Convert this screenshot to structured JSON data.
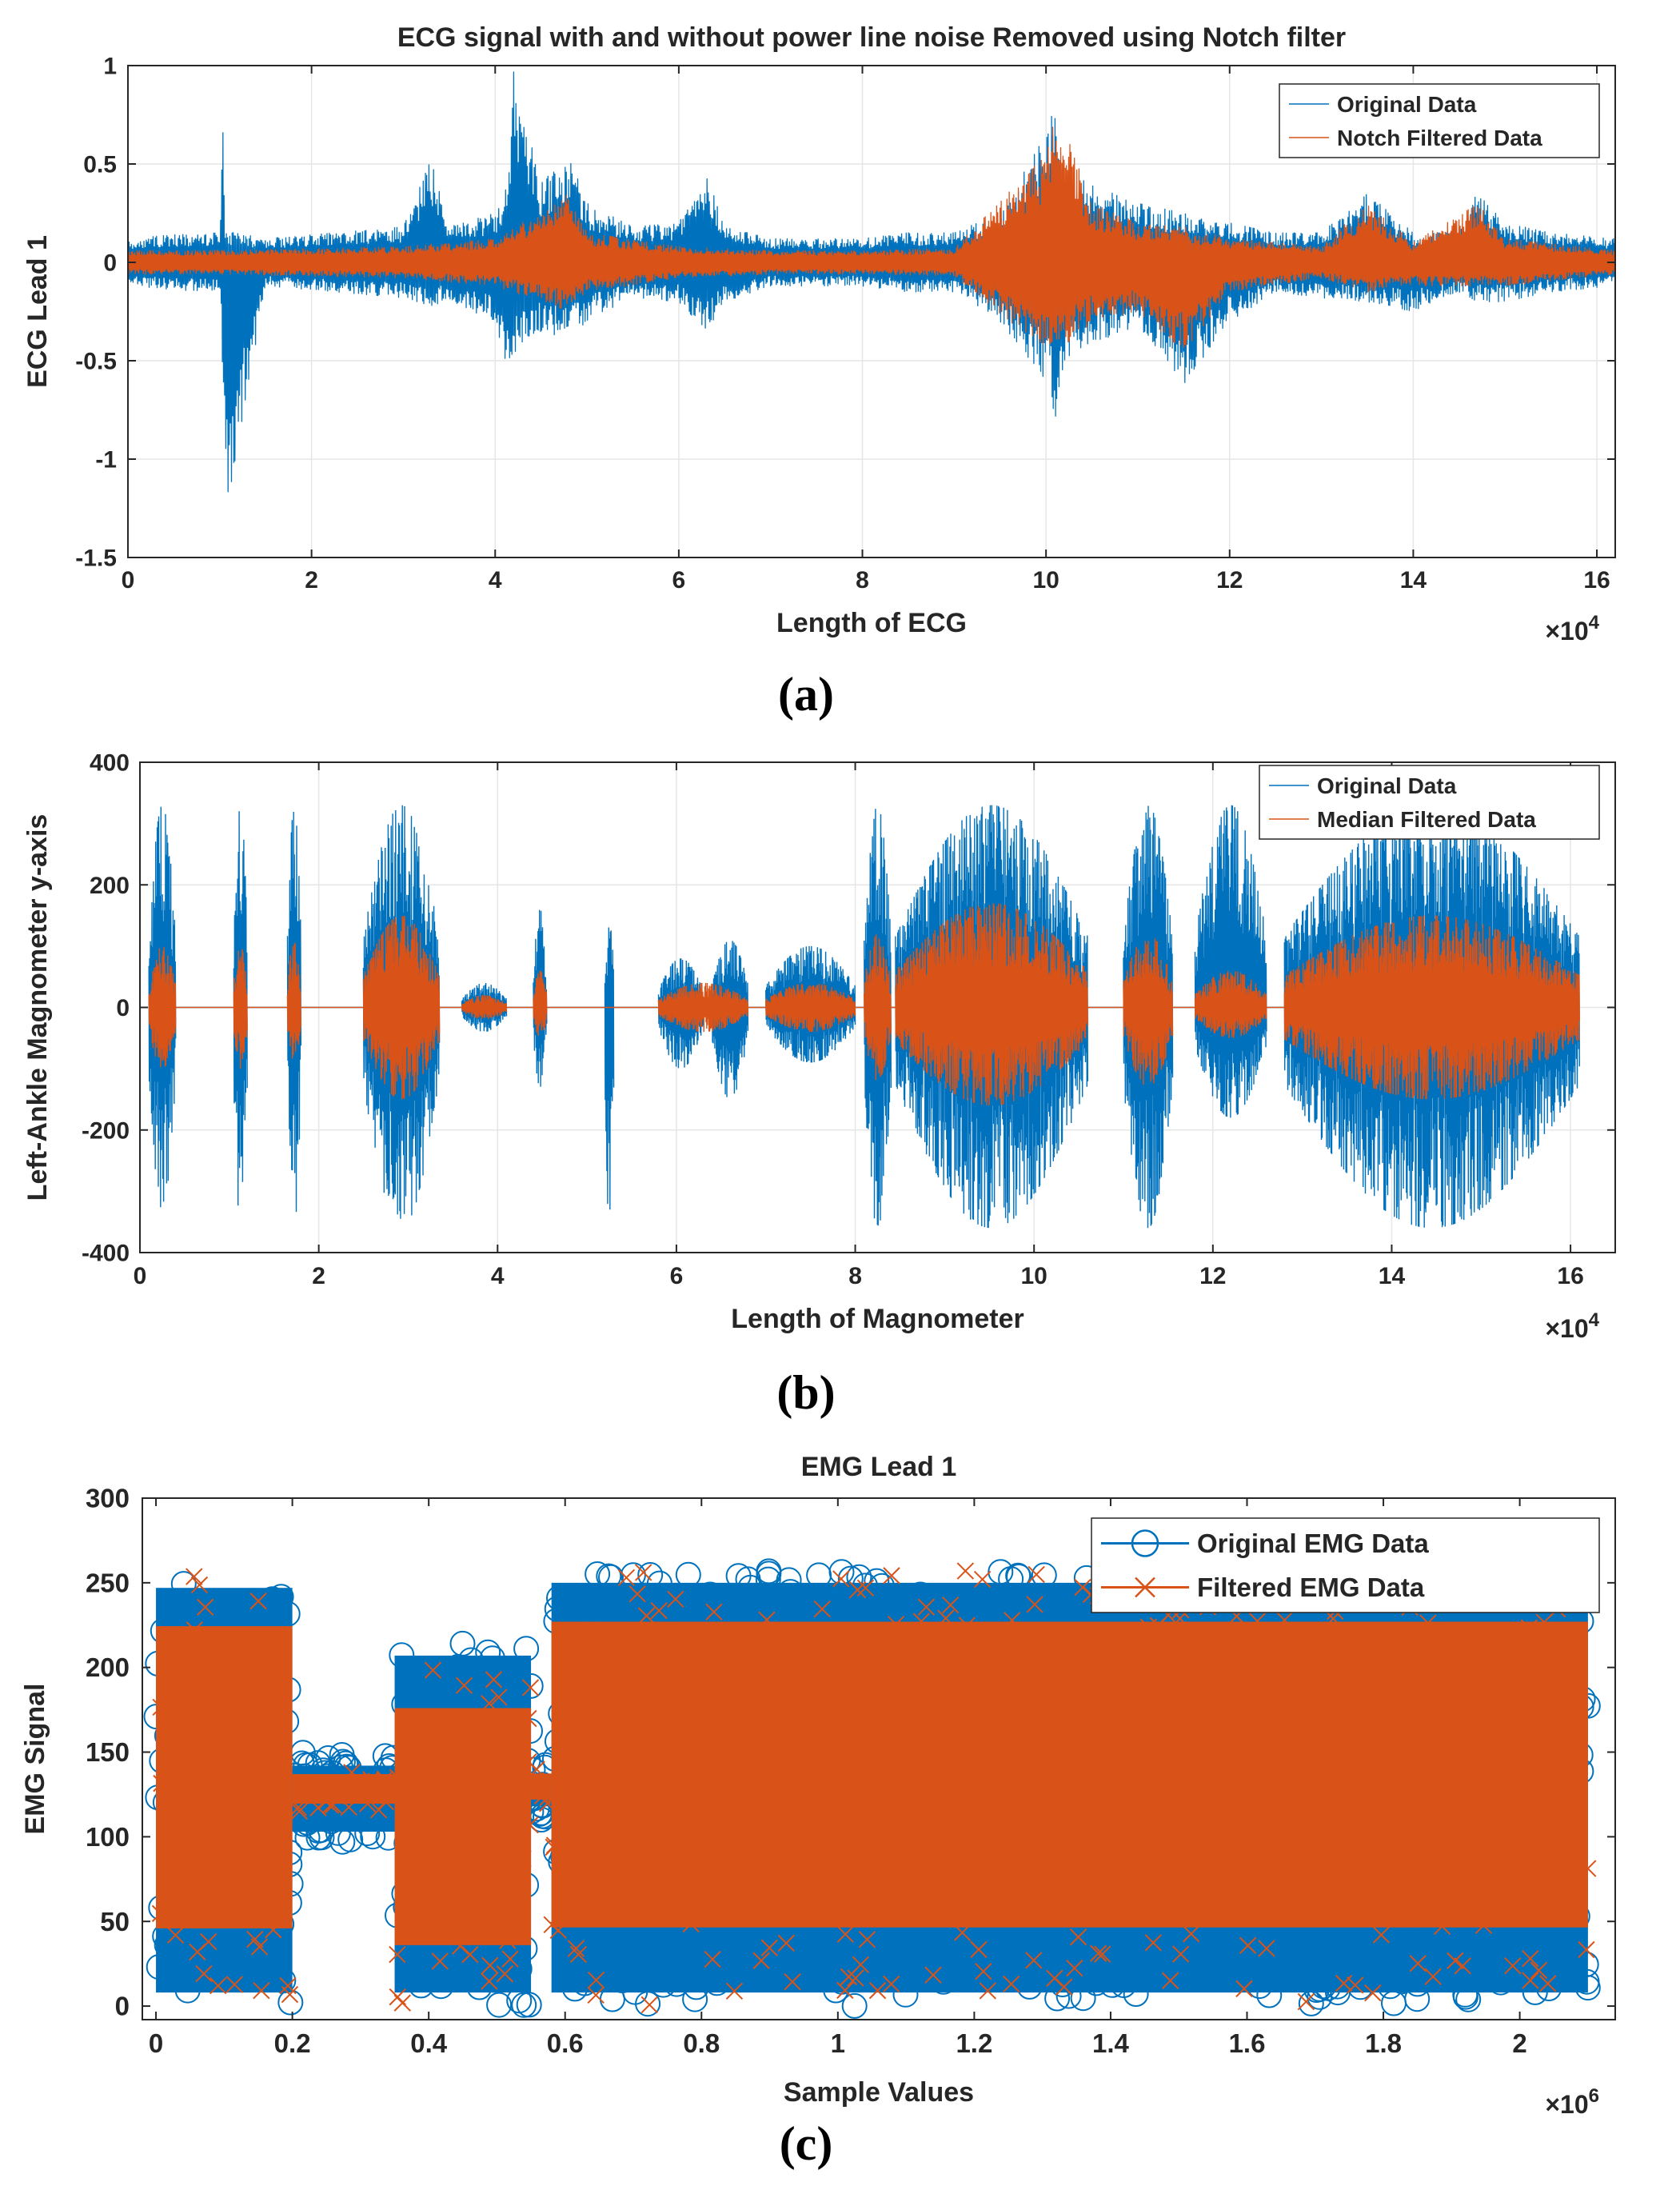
{
  "figure": {
    "captions": [
      "(a)",
      "(b)",
      "(c)"
    ]
  },
  "chart_data": [
    {
      "id": "a",
      "type": "line",
      "title": "ECG signal with and without power line noise Removed using Notch filter",
      "xlabel": "Length of ECG",
      "ylabel": "ECG Lead 1",
      "xlim": [
        0,
        16.2
      ],
      "ylim": [
        -1.5,
        1
      ],
      "x_exponent": "4",
      "x_ticks": [
        0,
        2,
        4,
        6,
        8,
        10,
        12,
        14,
        16
      ],
      "y_ticks": [
        -1.5,
        -1,
        -0.5,
        0,
        0.5,
        1
      ],
      "grid": true,
      "legend_position": "top-right",
      "colors": {
        "original": "#0072BD",
        "filtered": "#D95319"
      },
      "series": [
        {
          "name": "Original Data",
          "x": [
            0,
            0.5,
            1.0,
            1.03,
            1.06,
            1.5,
            2.0,
            2.5,
            3.0,
            3.3,
            3.5,
            4.0,
            4.15,
            4.2,
            4.5,
            4.8,
            5.0,
            5.5,
            6.0,
            6.3,
            6.5,
            7.0,
            7.5,
            8.0,
            8.5,
            9.0,
            9.5,
            10.0,
            10.1,
            10.2,
            10.5,
            11.0,
            11.5,
            12.0,
            12.5,
            13.0,
            13.5,
            14.0,
            14.5,
            14.7,
            15.0,
            15.5,
            16.2
          ],
          "upper": [
            0.12,
            0.14,
            0.15,
            0.78,
            0.16,
            0.12,
            0.14,
            0.16,
            0.18,
            0.52,
            0.18,
            0.25,
            0.45,
            1.0,
            0.4,
            0.55,
            0.3,
            0.18,
            0.2,
            0.45,
            0.18,
            0.12,
            0.12,
            0.12,
            0.15,
            0.15,
            0.25,
            0.65,
            0.85,
            0.45,
            0.4,
            0.3,
            0.25,
            0.2,
            0.15,
            0.15,
            0.35,
            0.15,
            0.15,
            0.38,
            0.2,
            0.15,
            0.12
          ],
          "lower": [
            -0.12,
            -0.14,
            -0.15,
            -0.56,
            -1.35,
            -0.12,
            -0.14,
            -0.16,
            -0.18,
            -0.22,
            -0.2,
            -0.3,
            -0.57,
            -0.5,
            -0.35,
            -0.4,
            -0.3,
            -0.18,
            -0.2,
            -0.35,
            -0.2,
            -0.12,
            -0.12,
            -0.12,
            -0.15,
            -0.15,
            -0.3,
            -0.6,
            -0.83,
            -0.5,
            -0.4,
            -0.35,
            -0.62,
            -0.3,
            -0.15,
            -0.18,
            -0.2,
            -0.25,
            -0.15,
            -0.2,
            -0.2,
            -0.15,
            -0.12
          ]
        },
        {
          "name": "Notch Filtered Data",
          "x": [
            0,
            1.0,
            2.0,
            3.0,
            4.0,
            4.8,
            5.0,
            6.0,
            7.0,
            8.0,
            9.0,
            10.0,
            10.1,
            10.5,
            11.0,
            11.5,
            12.0,
            13.0,
            13.5,
            14.0,
            14.7,
            15.0,
            16.2
          ],
          "upper": [
            0.06,
            0.06,
            0.07,
            0.08,
            0.12,
            0.35,
            0.15,
            0.08,
            0.06,
            0.06,
            0.07,
            0.55,
            0.8,
            0.3,
            0.2,
            0.18,
            0.12,
            0.08,
            0.3,
            0.1,
            0.3,
            0.12,
            0.06
          ],
          "lower": [
            -0.06,
            -0.06,
            -0.07,
            -0.08,
            -0.12,
            -0.25,
            -0.15,
            -0.08,
            -0.06,
            -0.06,
            -0.07,
            -0.45,
            -0.5,
            -0.3,
            -0.25,
            -0.45,
            -0.15,
            -0.08,
            -0.15,
            -0.12,
            -0.12,
            -0.12,
            -0.06
          ]
        }
      ]
    },
    {
      "id": "b",
      "type": "line",
      "xlabel": "Length of Magnometer",
      "ylabel": "Left-Ankle Magnometer y-axis",
      "xlim": [
        0,
        16.5
      ],
      "ylim": [
        -400,
        400
      ],
      "x_exponent": "4",
      "x_ticks": [
        0,
        2,
        4,
        6,
        8,
        10,
        12,
        14,
        16
      ],
      "y_ticks": [
        -400,
        -200,
        0,
        200,
        400
      ],
      "grid": true,
      "legend_position": "top-right",
      "colors": {
        "original": "#0072BD",
        "filtered": "#D95319"
      },
      "series": [
        {
          "name": "Original Data",
          "bursts": [
            {
              "x0": 0.1,
              "x1": 0.4,
              "hi": 330,
              "lo": -330
            },
            {
              "x0": 1.05,
              "x1": 1.2,
              "hi": 330,
              "lo": -360
            },
            {
              "x0": 1.65,
              "x1": 1.8,
              "hi": 330,
              "lo": -360
            },
            {
              "x0": 2.5,
              "x1": 3.35,
              "hi": 330,
              "lo": -360
            },
            {
              "x0": 3.6,
              "x1": 4.1,
              "hi": 40,
              "lo": -40
            },
            {
              "x0": 4.4,
              "x1": 4.55,
              "hi": 160,
              "lo": -130
            },
            {
              "x0": 5.2,
              "x1": 5.3,
              "hi": 150,
              "lo": -360
            },
            {
              "x0": 5.8,
              "x1": 6.3,
              "hi": 80,
              "lo": -100
            },
            {
              "x0": 6.4,
              "x1": 6.8,
              "hi": 110,
              "lo": -150
            },
            {
              "x0": 7.0,
              "x1": 8.0,
              "hi": 100,
              "lo": -90
            },
            {
              "x0": 8.1,
              "x1": 8.4,
              "hi": 330,
              "lo": -360
            },
            {
              "x0": 8.45,
              "x1": 10.6,
              "hi": 330,
              "lo": -360
            },
            {
              "x0": 11.0,
              "x1": 11.55,
              "hi": 330,
              "lo": -360
            },
            {
              "x0": 11.8,
              "x1": 12.6,
              "hi": 330,
              "lo": -180
            },
            {
              "x0": 12.8,
              "x1": 16.1,
              "hi": 330,
              "lo": -360
            }
          ]
        },
        {
          "name": "Median Filtered Data",
          "bursts": [
            {
              "x0": 0.1,
              "x1": 0.4,
              "hi": 100,
              "lo": -100
            },
            {
              "x0": 1.05,
              "x1": 1.2,
              "hi": 100,
              "lo": -100
            },
            {
              "x0": 1.65,
              "x1": 1.8,
              "hi": 110,
              "lo": -100
            },
            {
              "x0": 2.5,
              "x1": 3.35,
              "hi": 150,
              "lo": -150
            },
            {
              "x0": 3.6,
              "x1": 4.1,
              "hi": 20,
              "lo": -20
            },
            {
              "x0": 4.4,
              "x1": 4.55,
              "hi": 60,
              "lo": -50
            },
            {
              "x0": 5.8,
              "x1": 6.8,
              "hi": 40,
              "lo": -40
            },
            {
              "x0": 7.0,
              "x1": 8.0,
              "hi": 40,
              "lo": -40
            },
            {
              "x0": 8.1,
              "x1": 8.4,
              "hi": 120,
              "lo": -120
            },
            {
              "x0": 8.45,
              "x1": 10.6,
              "hi": 170,
              "lo": -160
            },
            {
              "x0": 11.0,
              "x1": 11.55,
              "hi": 120,
              "lo": -130
            },
            {
              "x0": 11.8,
              "x1": 12.6,
              "hi": 60,
              "lo": -50
            },
            {
              "x0": 12.8,
              "x1": 16.1,
              "hi": 150,
              "lo": -150
            }
          ]
        }
      ]
    },
    {
      "id": "c",
      "type": "scatter",
      "title": "EMG Lead 1",
      "xlabel": "Sample Values",
      "ylabel": "EMG Signal",
      "xlim": [
        -0.02,
        2.14
      ],
      "ylim": [
        -8,
        300
      ],
      "x_exponent": "6",
      "x_ticks": [
        0,
        0.2,
        0.4,
        0.6,
        0.8,
        1,
        1.2,
        1.4,
        1.6,
        1.8,
        2
      ],
      "y_ticks": [
        0,
        50,
        100,
        150,
        200,
        250,
        300
      ],
      "grid": false,
      "legend_position": "top-right",
      "colors": {
        "original": "#0072BD",
        "filtered": "#D95319"
      },
      "series": [
        {
          "name": "Original EMG Data",
          "marker": "circle",
          "bands": [
            {
              "x0": 0.0,
              "x1": 0.2,
              "hi": 255,
              "lo": 0
            },
            {
              "x0": 0.2,
              "x1": 0.35,
              "hi": 150,
              "lo": 95
            },
            {
              "x0": 0.35,
              "x1": 0.55,
              "hi": 215,
              "lo": 0
            },
            {
              "x0": 0.55,
              "x1": 0.58,
              "hi": 145,
              "lo": 110
            },
            {
              "x0": 0.58,
              "x1": 2.1,
              "hi": 258,
              "lo": 0
            }
          ]
        },
        {
          "name": "Filtered EMG Data",
          "marker": "x",
          "bands": [
            {
              "x0": 0.0,
              "x1": 0.2,
              "hi": 255,
              "lo": 0
            },
            {
              "x0": 0.2,
              "x1": 0.35,
              "hi": 140,
              "lo": 115
            },
            {
              "x0": 0.35,
              "x1": 0.55,
              "hi": 200,
              "lo": 0
            },
            {
              "x0": 0.55,
              "x1": 0.58,
              "hi": 140,
              "lo": 118
            },
            {
              "x0": 0.58,
              "x1": 2.1,
              "hi": 258,
              "lo": 0
            }
          ]
        }
      ]
    }
  ]
}
